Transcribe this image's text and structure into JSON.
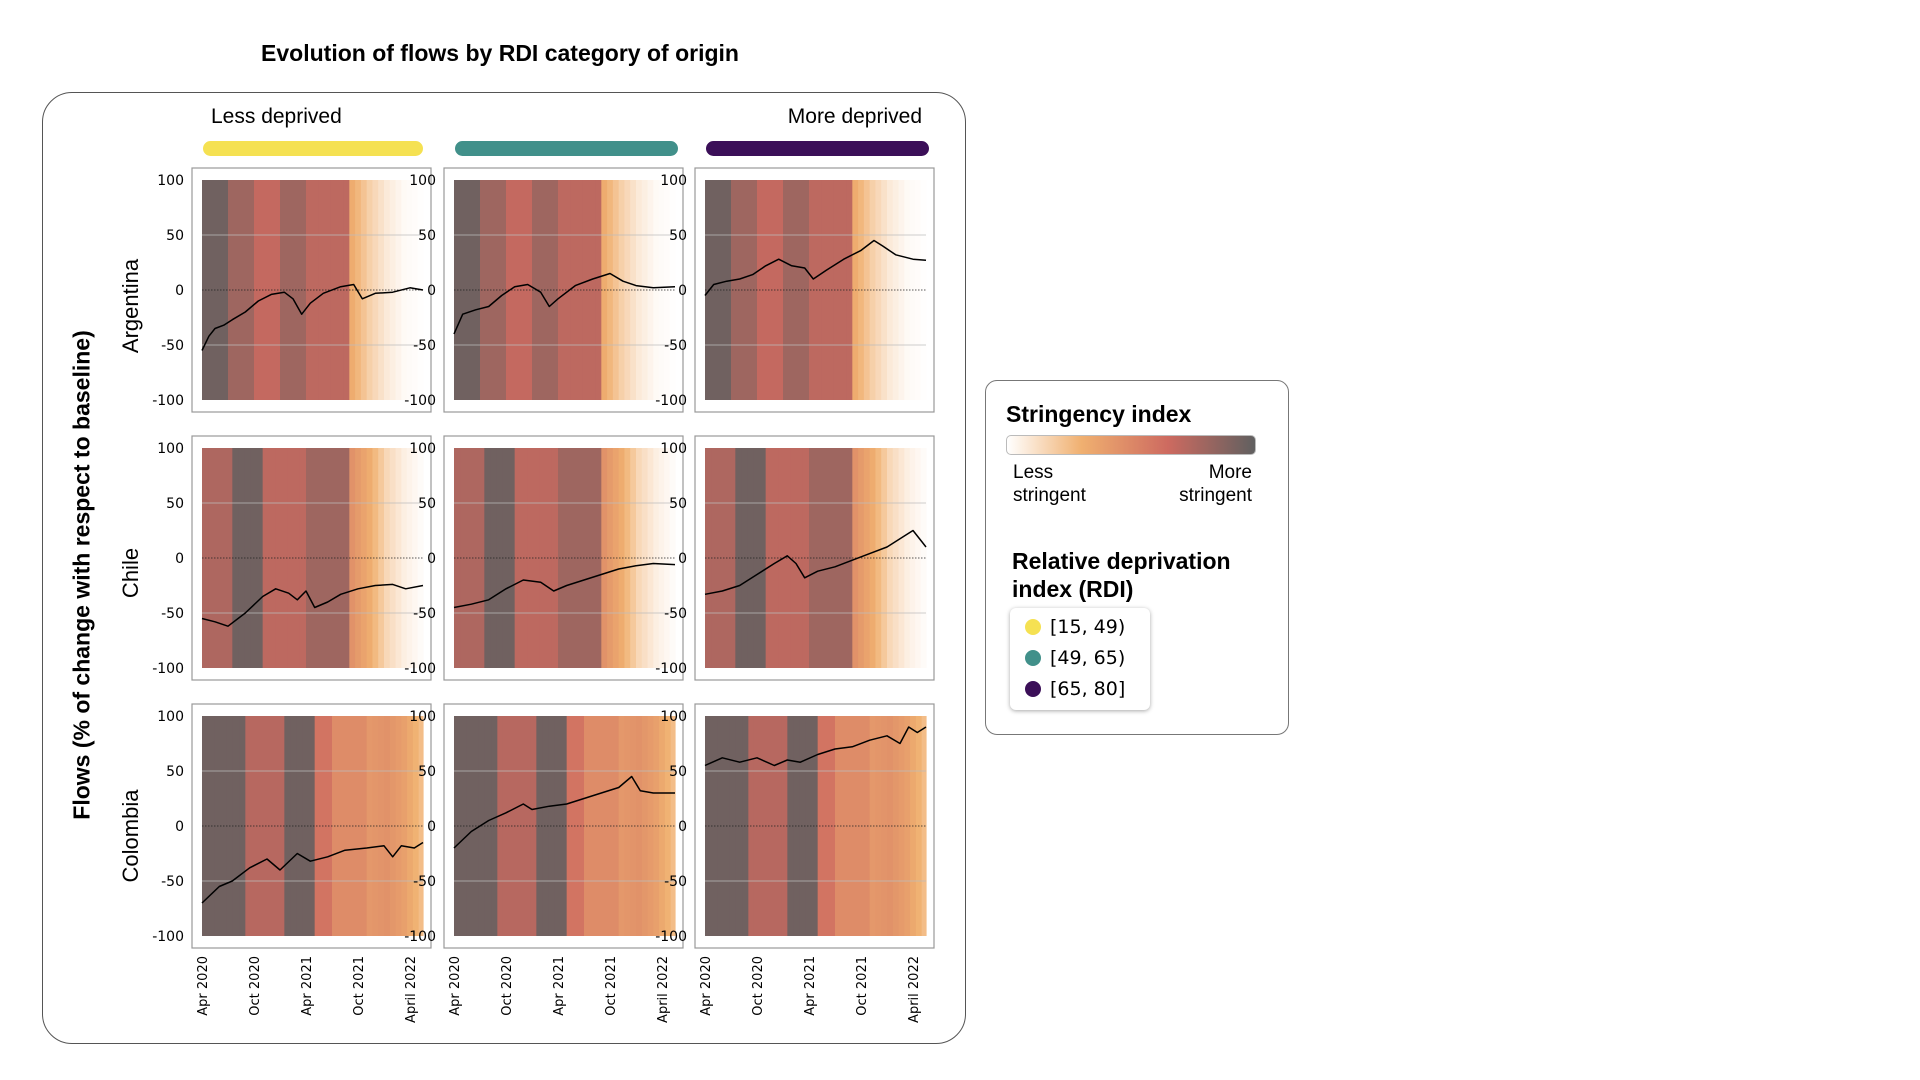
{
  "title": "Evolution of flows by RDI category of origin",
  "column_labels": {
    "left": "Less deprived",
    "right": "More deprived"
  },
  "y_axis_title": "Flows (% of change with respect to baseline)",
  "rows": [
    "Argentina",
    "Chile",
    "Colombia"
  ],
  "colors": {
    "rdi_low": "#f5e152",
    "rdi_mid": "#41908a",
    "rdi_high": "#3b0f58",
    "stringency_low": "#ffffff",
    "stringency_mid1": "#f0b070",
    "stringency_mid2": "#cd6a60",
    "stringency_high": "#606060"
  },
  "legend": {
    "stringency_title": "Stringency index",
    "less_label": "Less stringent",
    "more_label": "More stringent",
    "rdi_title": "Relative deprivation index (RDI)",
    "rdi_items": [
      {
        "label": "[15, 49)",
        "color": "#f5e152"
      },
      {
        "label": "[49, 65)",
        "color": "#41908a"
      },
      {
        "label": "[65, 80]",
        "color": "#3b0f58"
      }
    ]
  },
  "chart_data": {
    "type": "line",
    "y_ticks": [
      "100",
      "50",
      "0",
      "-50",
      "-100"
    ],
    "ylim": [
      -100,
      100
    ],
    "x_ticks": [
      "Apr 2020",
      "Oct 2020",
      "Apr 2021",
      "Oct 2021",
      "April 2022"
    ],
    "x_tick_months": [
      0,
      6,
      12,
      18,
      24
    ],
    "x_range_months": [
      0,
      25.5
    ],
    "reference_line_y": 0,
    "background": "stringency index over time shaded as vertical bands (0 = less stringent, 1 = more stringent)",
    "panels": [
      {
        "country": "Argentina",
        "rdi": "[15, 49)",
        "stringency": [
          [
            0,
            0.95
          ],
          [
            3,
            0.8
          ],
          [
            6,
            0.68
          ],
          [
            9,
            0.8
          ],
          [
            12,
            0.7
          ],
          [
            17,
            0.32
          ],
          [
            19,
            0.18
          ],
          [
            21,
            0.08
          ],
          [
            23,
            0.02
          ],
          [
            25.5,
            0
          ]
        ],
        "series": [
          [
            0,
            -55
          ],
          [
            0.8,
            -42
          ],
          [
            1.5,
            -35
          ],
          [
            2.5,
            -32
          ],
          [
            3.5,
            -27
          ],
          [
            5,
            -20
          ],
          [
            6.5,
            -10
          ],
          [
            8,
            -4
          ],
          [
            9.5,
            -2
          ],
          [
            10.5,
            -8
          ],
          [
            11.5,
            -22
          ],
          [
            12.5,
            -12
          ],
          [
            14,
            -3
          ],
          [
            16,
            3
          ],
          [
            17.5,
            5
          ],
          [
            18.5,
            -8
          ],
          [
            20,
            -3
          ],
          [
            22,
            -2
          ],
          [
            24,
            2
          ],
          [
            25.5,
            0
          ]
        ]
      },
      {
        "country": "Argentina",
        "rdi": "[49, 65)",
        "stringency": [
          [
            0,
            0.95
          ],
          [
            3,
            0.8
          ],
          [
            6,
            0.68
          ],
          [
            9,
            0.8
          ],
          [
            12,
            0.7
          ],
          [
            17,
            0.32
          ],
          [
            19,
            0.18
          ],
          [
            21,
            0.08
          ],
          [
            23,
            0.02
          ],
          [
            25.5,
            0
          ]
        ],
        "series": [
          [
            0,
            -40
          ],
          [
            1,
            -22
          ],
          [
            2.5,
            -18
          ],
          [
            4,
            -15
          ],
          [
            5.5,
            -5
          ],
          [
            7,
            3
          ],
          [
            8.5,
            5
          ],
          [
            10,
            -2
          ],
          [
            11,
            -15
          ],
          [
            12,
            -8
          ],
          [
            14,
            4
          ],
          [
            16,
            10
          ],
          [
            18,
            15
          ],
          [
            19.5,
            8
          ],
          [
            21,
            4
          ],
          [
            23,
            2
          ],
          [
            25.5,
            3
          ]
        ]
      },
      {
        "country": "Argentina",
        "rdi": "[65, 80]",
        "stringency": [
          [
            0,
            0.95
          ],
          [
            3,
            0.8
          ],
          [
            6,
            0.68
          ],
          [
            9,
            0.8
          ],
          [
            12,
            0.7
          ],
          [
            17,
            0.32
          ],
          [
            19,
            0.18
          ],
          [
            21,
            0.08
          ],
          [
            23,
            0.02
          ],
          [
            25.5,
            0
          ]
        ],
        "series": [
          [
            0,
            -5
          ],
          [
            1,
            5
          ],
          [
            2.5,
            8
          ],
          [
            4,
            10
          ],
          [
            5.5,
            14
          ],
          [
            7,
            22
          ],
          [
            8.5,
            28
          ],
          [
            10,
            22
          ],
          [
            11.5,
            20
          ],
          [
            12.5,
            10
          ],
          [
            14,
            18
          ],
          [
            16,
            28
          ],
          [
            18,
            36
          ],
          [
            19.5,
            45
          ],
          [
            20.5,
            40
          ],
          [
            22,
            32
          ],
          [
            24,
            28
          ],
          [
            25.5,
            27
          ]
        ]
      },
      {
        "country": "Chile",
        "rdi": "[15, 49)",
        "stringency": [
          [
            0,
            0.75
          ],
          [
            3.5,
            0.95
          ],
          [
            7,
            0.7
          ],
          [
            12,
            0.8
          ],
          [
            17,
            0.45
          ],
          [
            19,
            0.32
          ],
          [
            21,
            0.15
          ],
          [
            23,
            0.06
          ],
          [
            25.5,
            0
          ]
        ],
        "series": [
          [
            0,
            -55
          ],
          [
            1.5,
            -58
          ],
          [
            3,
            -62
          ],
          [
            5,
            -50
          ],
          [
            7,
            -35
          ],
          [
            8.5,
            -28
          ],
          [
            10,
            -32
          ],
          [
            11,
            -38
          ],
          [
            12,
            -30
          ],
          [
            13,
            -45
          ],
          [
            14.5,
            -40
          ],
          [
            16,
            -33
          ],
          [
            18,
            -28
          ],
          [
            20,
            -25
          ],
          [
            22,
            -24
          ],
          [
            23.5,
            -28
          ],
          [
            25.5,
            -25
          ]
        ]
      },
      {
        "country": "Chile",
        "rdi": "[49, 65)",
        "stringency": [
          [
            0,
            0.75
          ],
          [
            3.5,
            0.95
          ],
          [
            7,
            0.7
          ],
          [
            12,
            0.8
          ],
          [
            17,
            0.45
          ],
          [
            19,
            0.32
          ],
          [
            21,
            0.15
          ],
          [
            23,
            0.06
          ],
          [
            25.5,
            0
          ]
        ],
        "series": [
          [
            0,
            -45
          ],
          [
            2,
            -42
          ],
          [
            4,
            -38
          ],
          [
            6,
            -28
          ],
          [
            8,
            -20
          ],
          [
            10,
            -22
          ],
          [
            11.5,
            -30
          ],
          [
            13,
            -25
          ],
          [
            15,
            -20
          ],
          [
            17,
            -15
          ],
          [
            19,
            -10
          ],
          [
            21,
            -7
          ],
          [
            23,
            -5
          ],
          [
            25.5,
            -6
          ]
        ]
      },
      {
        "country": "Chile",
        "rdi": "[65, 80]",
        "stringency": [
          [
            0,
            0.75
          ],
          [
            3.5,
            0.95
          ],
          [
            7,
            0.7
          ],
          [
            12,
            0.8
          ],
          [
            17,
            0.45
          ],
          [
            19,
            0.32
          ],
          [
            21,
            0.15
          ],
          [
            23,
            0.06
          ],
          [
            25.5,
            0
          ]
        ],
        "series": [
          [
            0,
            -33
          ],
          [
            2,
            -30
          ],
          [
            4,
            -25
          ],
          [
            6,
            -15
          ],
          [
            8,
            -5
          ],
          [
            9.5,
            2
          ],
          [
            10.5,
            -5
          ],
          [
            11.5,
            -18
          ],
          [
            13,
            -12
          ],
          [
            15,
            -8
          ],
          [
            17,
            -2
          ],
          [
            19,
            4
          ],
          [
            21,
            10
          ],
          [
            23,
            20
          ],
          [
            24,
            25
          ],
          [
            25,
            15
          ],
          [
            25.5,
            10
          ]
        ]
      },
      {
        "country": "Colombia",
        "rdi": "[15, 49)",
        "stringency": [
          [
            0,
            0.95
          ],
          [
            5,
            0.72
          ],
          [
            9.5,
            0.95
          ],
          [
            13,
            0.6
          ],
          [
            15,
            0.48
          ],
          [
            19,
            0.42
          ],
          [
            21,
            0.45
          ],
          [
            23,
            0.38
          ],
          [
            25,
            0.25
          ],
          [
            25.5,
            0.25
          ]
        ],
        "series": [
          [
            0,
            -70
          ],
          [
            2,
            -55
          ],
          [
            3.5,
            -50
          ],
          [
            5.5,
            -38
          ],
          [
            7.5,
            -30
          ],
          [
            9,
            -40
          ],
          [
            11,
            -25
          ],
          [
            12.5,
            -32
          ],
          [
            14.5,
            -28
          ],
          [
            16.5,
            -22
          ],
          [
            19,
            -20
          ],
          [
            21,
            -18
          ],
          [
            22,
            -28
          ],
          [
            23,
            -18
          ],
          [
            24.5,
            -20
          ],
          [
            25.5,
            -15
          ]
        ]
      },
      {
        "country": "Colombia",
        "rdi": "[49, 65)",
        "stringency": [
          [
            0,
            0.95
          ],
          [
            5,
            0.72
          ],
          [
            9.5,
            0.95
          ],
          [
            13,
            0.6
          ],
          [
            15,
            0.48
          ],
          [
            19,
            0.42
          ],
          [
            21,
            0.45
          ],
          [
            23,
            0.38
          ],
          [
            25,
            0.25
          ],
          [
            25.5,
            0.25
          ]
        ],
        "series": [
          [
            0,
            -20
          ],
          [
            2,
            -5
          ],
          [
            4,
            5
          ],
          [
            6,
            12
          ],
          [
            8,
            20
          ],
          [
            9,
            15
          ],
          [
            11,
            18
          ],
          [
            13,
            20
          ],
          [
            15,
            25
          ],
          [
            17,
            30
          ],
          [
            19,
            35
          ],
          [
            20.5,
            45
          ],
          [
            21.5,
            32
          ],
          [
            23,
            30
          ],
          [
            25.5,
            30
          ]
        ]
      },
      {
        "country": "Colombia",
        "rdi": "[65, 80]",
        "stringency": [
          [
            0,
            0.95
          ],
          [
            5,
            0.72
          ],
          [
            9.5,
            0.95
          ],
          [
            13,
            0.6
          ],
          [
            15,
            0.48
          ],
          [
            19,
            0.42
          ],
          [
            21,
            0.45
          ],
          [
            23,
            0.38
          ],
          [
            25,
            0.25
          ],
          [
            25.5,
            0.25
          ]
        ],
        "series": [
          [
            0,
            55
          ],
          [
            2,
            62
          ],
          [
            4,
            58
          ],
          [
            6,
            62
          ],
          [
            8,
            55
          ],
          [
            9.5,
            60
          ],
          [
            11,
            58
          ],
          [
            13,
            65
          ],
          [
            15,
            70
          ],
          [
            17,
            72
          ],
          [
            19,
            78
          ],
          [
            21,
            82
          ],
          [
            22.5,
            75
          ],
          [
            23.5,
            90
          ],
          [
            24.5,
            85
          ],
          [
            25.5,
            90
          ]
        ]
      }
    ]
  }
}
